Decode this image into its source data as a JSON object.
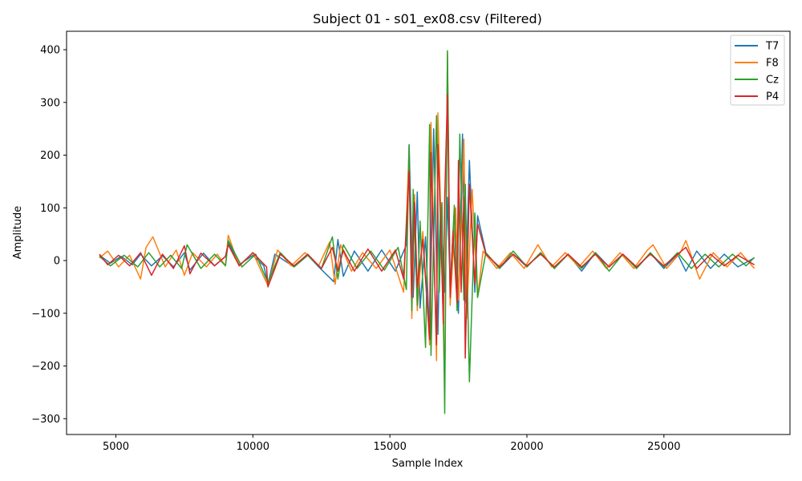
{
  "chart_data": {
    "type": "line",
    "title": "Subject 01 - s01_ex08.csv (Filtered)",
    "xlabel": "Sample Index",
    "ylabel": "Amplitude",
    "xlim": [
      3200,
      29600
    ],
    "ylim": [
      -330,
      435
    ],
    "xticks": [
      5000,
      10000,
      15000,
      20000,
      25000
    ],
    "xtick_labels": [
      "5000",
      "10000",
      "15000",
      "20000",
      "25000"
    ],
    "yticks": [
      -300,
      -200,
      -100,
      0,
      100,
      200,
      300,
      400
    ],
    "ytick_labels": [
      "−300",
      "−200",
      "−100",
      "0",
      "100",
      "200",
      "300",
      "400"
    ],
    "grid": false,
    "legend_position": "upper-right",
    "series": [
      {
        "name": "T7",
        "color": "#1f77b4",
        "x": [
          4400,
          4800,
          5200,
          5600,
          5900,
          6300,
          6700,
          7100,
          7500,
          7700,
          8200,
          8600,
          9000,
          9100,
          9500,
          10000,
          10400,
          10550,
          10800,
          11500,
          12000,
          12400,
          12950,
          13100,
          13300,
          13700,
          14200,
          14700,
          15200,
          15600,
          15700,
          15850,
          16000,
          16100,
          16300,
          16450,
          16600,
          16750,
          16850,
          17000,
          17100,
          17200,
          17350,
          17500,
          17650,
          17750,
          17900,
          18100,
          18200,
          18500,
          19000,
          19500,
          20000,
          20500,
          21000,
          21500,
          22000,
          22500,
          23000,
          23500,
          24000,
          24500,
          25000,
          25500,
          25800,
          26200,
          26700,
          27200,
          27700,
          28300
        ],
        "y": [
          10,
          -5,
          8,
          -8,
          12,
          -10,
          9,
          -12,
          15,
          -18,
          14,
          -10,
          8,
          35,
          -8,
          10,
          -10,
          -45,
          12,
          -12,
          10,
          -12,
          -40,
          40,
          -30,
          18,
          -20,
          20,
          -20,
          30,
          220,
          -70,
          130,
          -90,
          45,
          -150,
          250,
          -140,
          110,
          -60,
          120,
          -50,
          95,
          -100,
          240,
          -80,
          190,
          -60,
          85,
          15,
          -15,
          12,
          -12,
          15,
          -15,
          12,
          -20,
          15,
          -12,
          12,
          -15,
          14,
          -15,
          12,
          -20,
          18,
          -15,
          12,
          -12,
          5
        ]
      },
      {
        "name": "F8",
        "color": "#ff7f0e",
        "x": [
          4400,
          4700,
          5100,
          5500,
          5900,
          6100,
          6350,
          6800,
          7200,
          7500,
          7800,
          8300,
          8700,
          9000,
          9100,
          9500,
          10000,
          10550,
          10900,
          11400,
          11900,
          12400,
          12800,
          13000,
          13200,
          13600,
          14000,
          14500,
          15000,
          15500,
          15700,
          15800,
          15900,
          16000,
          16200,
          16450,
          16500,
          16700,
          16750,
          16850,
          17000,
          17100,
          17200,
          17400,
          17500,
          17700,
          17800,
          18000,
          18200,
          18400,
          18900,
          19400,
          19900,
          20400,
          20900,
          21400,
          21900,
          22400,
          22900,
          23400,
          23900,
          24400,
          24600,
          25100,
          25600,
          25800,
          26300,
          26800,
          27300,
          27800,
          28300
        ],
        "y": [
          5,
          18,
          -12,
          10,
          -35,
          25,
          45,
          -12,
          20,
          -28,
          15,
          -12,
          12,
          -10,
          48,
          -10,
          15,
          -48,
          20,
          -10,
          15,
          -10,
          35,
          -45,
          30,
          -20,
          15,
          -15,
          20,
          -60,
          210,
          -110,
          125,
          -95,
          55,
          -160,
          262,
          -190,
          280,
          105,
          -240,
          395,
          -85,
          100,
          -75,
          230,
          -110,
          135,
          -70,
          18,
          -15,
          15,
          -15,
          30,
          -12,
          15,
          -12,
          18,
          -15,
          15,
          -15,
          20,
          30,
          -15,
          15,
          38,
          -35,
          15,
          -12,
          15,
          -15
        ]
      },
      {
        "name": "Cz",
        "color": "#2ca02c",
        "x": [
          4400,
          4800,
          5300,
          5800,
          6200,
          6600,
          7000,
          7400,
          7600,
          8100,
          8600,
          9000,
          9100,
          9600,
          10100,
          10550,
          11000,
          11500,
          12000,
          12500,
          12900,
          13100,
          13300,
          13800,
          14300,
          14800,
          15300,
          15600,
          15700,
          15800,
          15850,
          16000,
          16100,
          16300,
          16450,
          16500,
          16700,
          16800,
          16900,
          17000,
          17100,
          17200,
          17350,
          17450,
          17550,
          17700,
          17750,
          17900,
          18100,
          18200,
          18500,
          19000,
          19500,
          20000,
          20500,
          21000,
          21500,
          22000,
          22500,
          23000,
          23500,
          24000,
          24500,
          25000,
          25500,
          26000,
          26500,
          27000,
          27500,
          28000,
          28300
        ],
        "y": [
          8,
          -10,
          10,
          -12,
          15,
          -12,
          10,
          -15,
          30,
          -15,
          12,
          -10,
          38,
          -12,
          12,
          -42,
          15,
          -12,
          10,
          -15,
          45,
          -35,
          30,
          -15,
          18,
          -18,
          25,
          -55,
          218,
          -95,
          135,
          -85,
          75,
          -165,
          258,
          -180,
          275,
          -60,
          110,
          -290,
          398,
          -60,
          105,
          -95,
          240,
          -75,
          145,
          -230,
          90,
          -70,
          15,
          -15,
          18,
          -12,
          15,
          -15,
          12,
          -15,
          15,
          -20,
          12,
          -15,
          15,
          -12,
          15,
          -15,
          12,
          -12,
          12,
          -10,
          6
        ]
      },
      {
        "name": "P4",
        "color": "#d62728",
        "x": [
          4400,
          4700,
          5100,
          5500,
          5900,
          6300,
          6700,
          7100,
          7500,
          7700,
          8100,
          8600,
          9000,
          9100,
          9500,
          10000,
          10500,
          10550,
          11000,
          11500,
          12000,
          12500,
          12900,
          13100,
          13300,
          13700,
          14200,
          14700,
          15200,
          15500,
          15700,
          15800,
          15900,
          16000,
          16200,
          16450,
          16500,
          16700,
          16750,
          16850,
          16950,
          17000,
          17100,
          17200,
          17300,
          17450,
          17500,
          17600,
          17700,
          17750,
          17900,
          18100,
          18200,
          18500,
          19000,
          19500,
          20000,
          20500,
          21000,
          21500,
          22000,
          22500,
          23000,
          23500,
          24000,
          24500,
          25000,
          25500,
          25800,
          26200,
          26700,
          27200,
          27700,
          28300
        ],
        "y": [
          12,
          -8,
          10,
          -10,
          15,
          -28,
          12,
          -15,
          28,
          -25,
          14,
          -10,
          8,
          30,
          -10,
          15,
          -12,
          -50,
          12,
          -10,
          12,
          -15,
          25,
          -20,
          20,
          -20,
          22,
          -20,
          20,
          -35,
          170,
          -70,
          110,
          -50,
          40,
          -150,
          205,
          -160,
          220,
          70,
          -120,
          120,
          315,
          -70,
          55,
          -80,
          190,
          -60,
          120,
          -185,
          145,
          -45,
          70,
          12,
          -12,
          12,
          -10,
          12,
          -12,
          12,
          -12,
          12,
          -12,
          12,
          -12,
          12,
          -10,
          12,
          25,
          -15,
          12,
          -10,
          10,
          -8
        ]
      }
    ]
  }
}
